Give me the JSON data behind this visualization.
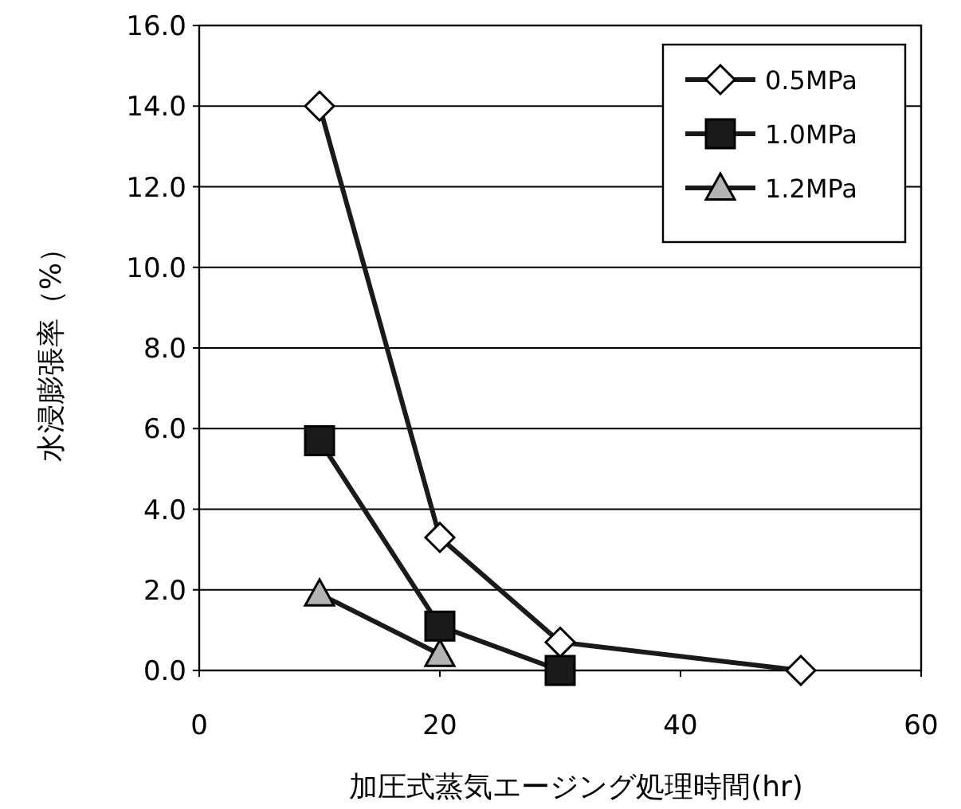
{
  "chart_data": {
    "type": "line",
    "xlabel": "加圧式蒸気エージング処理時間(hr)",
    "ylabel": "水浸膨張率（%）",
    "xlim": [
      0,
      60
    ],
    "xticks": [
      0,
      20,
      40,
      60
    ],
    "ylim": [
      0,
      16
    ],
    "yticks": [
      {
        "value": 0,
        "label": "0.0"
      },
      {
        "value": 2,
        "label": "2.0"
      },
      {
        "value": 4,
        "label": "4.0"
      },
      {
        "value": 6,
        "label": "6.0"
      },
      {
        "value": 8,
        "label": "8.0"
      },
      {
        "value": 10,
        "label": "10.0"
      },
      {
        "value": 12,
        "label": "12.0"
      },
      {
        "value": 14,
        "label": "14.0"
      },
      {
        "value": 16,
        "label": "16.0"
      }
    ],
    "grid": "y",
    "legend": "top right",
    "line_style": "solid",
    "series": [
      {
        "name": "0.5MPa",
        "color": "#ffffff",
        "marker": "diamond",
        "x": [
          10,
          20,
          30,
          50
        ],
        "values": [
          14.0,
          3.3,
          0.7,
          0.0
        ]
      },
      {
        "name": "1.0MPa",
        "color": "#1a1a1a",
        "marker": "square",
        "x": [
          10,
          20,
          30
        ],
        "values": [
          5.7,
          1.1,
          0.0
        ]
      },
      {
        "name": "1.2MPa",
        "color": "#b4b4b4",
        "marker": "triangle",
        "x": [
          10,
          20
        ],
        "values": [
          1.9,
          0.4
        ]
      }
    ]
  }
}
